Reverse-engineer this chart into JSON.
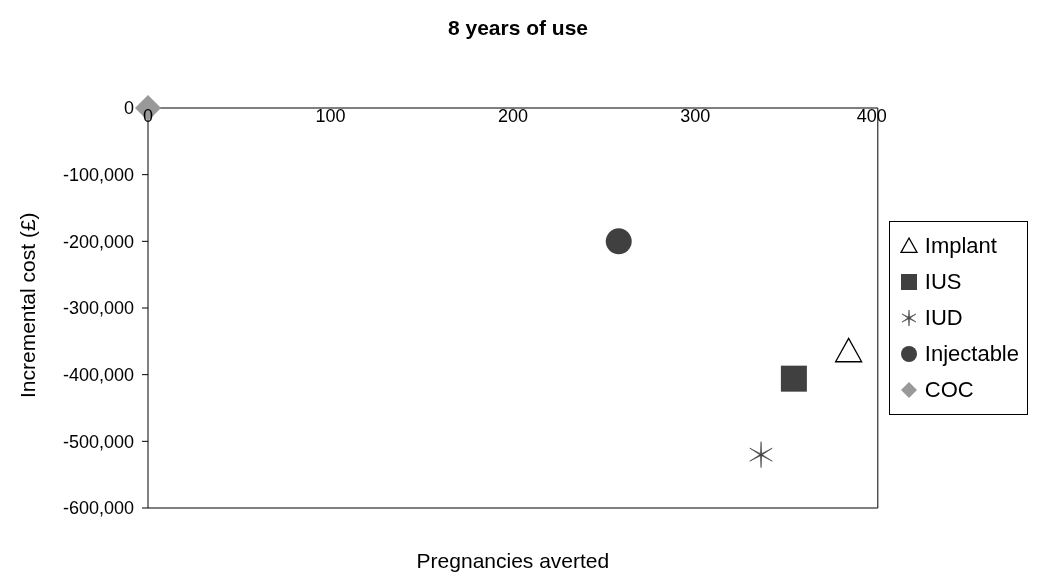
{
  "chart_data": {
    "type": "scatter",
    "title": "8 years of use",
    "xlabel": "Pregnancies averted",
    "ylabel": "Incremental cost (£)",
    "xlim": [
      0,
      400
    ],
    "xticks": [
      0,
      100,
      200,
      300,
      400
    ],
    "ylim": [
      -600000,
      0
    ],
    "yticks": [
      0,
      {
        "value": -100000,
        "label": "-100,000"
      },
      {
        "value": -200000,
        "label": "-200,000"
      },
      {
        "value": -300000,
        "label": "-300,000"
      },
      {
        "value": -400000,
        "label": "-400,000"
      },
      {
        "value": -500000,
        "label": "-500,000"
      },
      {
        "value": -600000,
        "label": "-600,000"
      }
    ],
    "grid": false,
    "legend": "right",
    "series": [
      {
        "name": "Implant",
        "color": "#000000",
        "marker": "triangle",
        "x": [
          384
        ],
        "values": [
          -365000
        ]
      },
      {
        "name": "IUS",
        "color": "#404040",
        "marker": "square",
        "x": [
          354
        ],
        "values": [
          -406000
        ]
      },
      {
        "name": "IUD",
        "color": "#404040",
        "marker": "cross",
        "x": [
          336
        ],
        "values": [
          -520000
        ]
      },
      {
        "name": "Injectable",
        "color": "#404040",
        "marker": "circle",
        "x": [
          258
        ],
        "values": [
          -200000
        ]
      },
      {
        "name": "COC",
        "color": "#999999",
        "marker": "diamond",
        "x": [
          0
        ],
        "values": [
          0
        ]
      }
    ]
  }
}
